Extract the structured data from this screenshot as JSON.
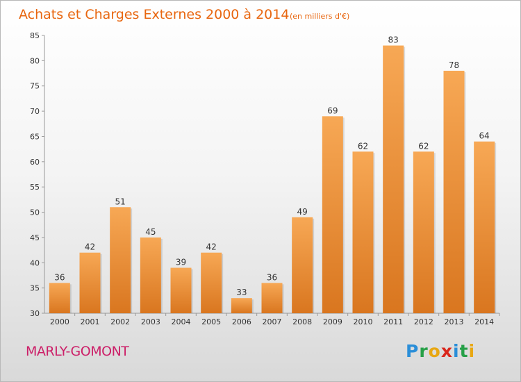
{
  "header": {
    "title": "Achats et Charges Externes 2000 à 2014",
    "unit": "(en milliers d'€)"
  },
  "footer": {
    "commune": "MARLY-GOMONT"
  },
  "logo": {
    "letters": [
      {
        "char": "P",
        "color": "#2a8ed8"
      },
      {
        "char": "r",
        "color": "#27a048"
      },
      {
        "char": "o",
        "color": "#e8a712"
      },
      {
        "char": "x",
        "color": "#d9261c"
      },
      {
        "char": "i",
        "color": "#2a8ed8"
      },
      {
        "char": "t",
        "color": "#27a048"
      },
      {
        "char": "i",
        "color": "#e8a712"
      }
    ]
  },
  "chart_data": {
    "type": "bar",
    "title": "Achats et Charges Externes 2000 à 2014",
    "subtitle": "(en milliers d'€)",
    "categories": [
      "2000",
      "2001",
      "2002",
      "2003",
      "2004",
      "2005",
      "2006",
      "2007",
      "2008",
      "2009",
      "2010",
      "2011",
      "2012",
      "2013",
      "2014"
    ],
    "values": [
      36,
      42,
      51,
      45,
      39,
      42,
      33,
      36,
      49,
      69,
      62,
      83,
      62,
      78,
      64
    ],
    "ylim": [
      30,
      85
    ],
    "yticks": [
      30,
      35,
      40,
      45,
      50,
      55,
      60,
      65,
      70,
      75,
      80,
      85
    ],
    "grid": false,
    "data_labels": true,
    "colors": {
      "bar_top": "#f7a855",
      "bar_bottom": "#d9761f",
      "axis": "#999999"
    }
  }
}
